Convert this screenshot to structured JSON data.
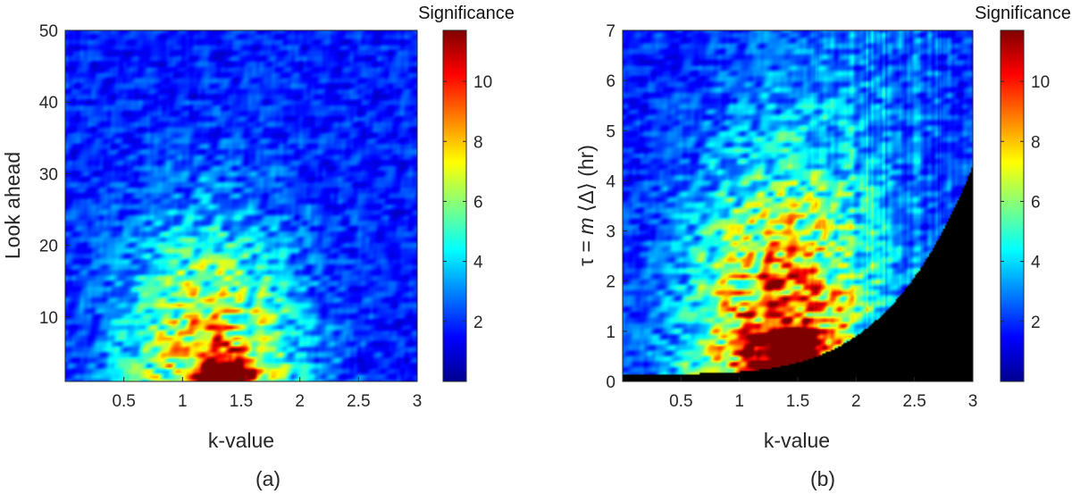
{
  "chart_data": [
    {
      "type": "heatmap",
      "panel_label": "(a)",
      "xlabel": "k-value",
      "ylabel": "Look ahead",
      "colorbar_title": "Significance",
      "xlim": [
        0,
        3
      ],
      "ylim": [
        1,
        50
      ],
      "xticks": [
        0.5,
        1,
        1.5,
        2,
        2.5,
        3
      ],
      "xtick_labels": [
        "0.5",
        "1",
        "1.5",
        "2",
        "2.5",
        "3"
      ],
      "yticks": [
        10,
        20,
        30,
        40,
        50
      ],
      "ytick_labels": [
        "10",
        "20",
        "30",
        "40",
        "50"
      ],
      "colorbar_range": [
        0,
        11.7
      ],
      "colorbar_ticks": [
        2,
        4,
        6,
        8,
        10
      ],
      "colorbar_tick_labels": [
        "2",
        "4",
        "6",
        "8",
        "10"
      ],
      "colormap": "jet",
      "hotspot": {
        "k": 1.35,
        "y": 1.8,
        "peak": 11.5
      }
    },
    {
      "type": "heatmap",
      "panel_label": "(b)",
      "xlabel": "k-value",
      "ylabel_prefix": "τ = ",
      "ylabel_var": "m",
      "ylabel_bracket": "⟨Δ⟩",
      "ylabel_unit": " (hr)",
      "colorbar_title": "Significance",
      "xlim": [
        0,
        3
      ],
      "ylim": [
        0,
        7
      ],
      "xticks": [
        0.5,
        1,
        1.5,
        2,
        2.5,
        3
      ],
      "xtick_labels": [
        "0.5",
        "1",
        "1.5",
        "2",
        "2.5",
        "3"
      ],
      "yticks": [
        0,
        1,
        2,
        3,
        4,
        5,
        6,
        7
      ],
      "ytick_labels": [
        "0",
        "1",
        "2",
        "3",
        "4",
        "5",
        "6",
        "7"
      ],
      "colorbar_range": [
        0,
        11.7
      ],
      "colorbar_ticks": [
        2,
        4,
        6,
        8,
        10
      ],
      "colorbar_tick_labels": [
        "2",
        "4",
        "6",
        "8",
        "10"
      ],
      "colormap": "jet",
      "masked_region_color": "#000000",
      "mask_boundary": {
        "k_start": 0.0,
        "tau_start": 0.15,
        "k_end": 3.0,
        "tau_end": 4.3
      },
      "hotspot": {
        "k": 1.4,
        "y": 0.6,
        "peak": 11.0
      }
    }
  ]
}
